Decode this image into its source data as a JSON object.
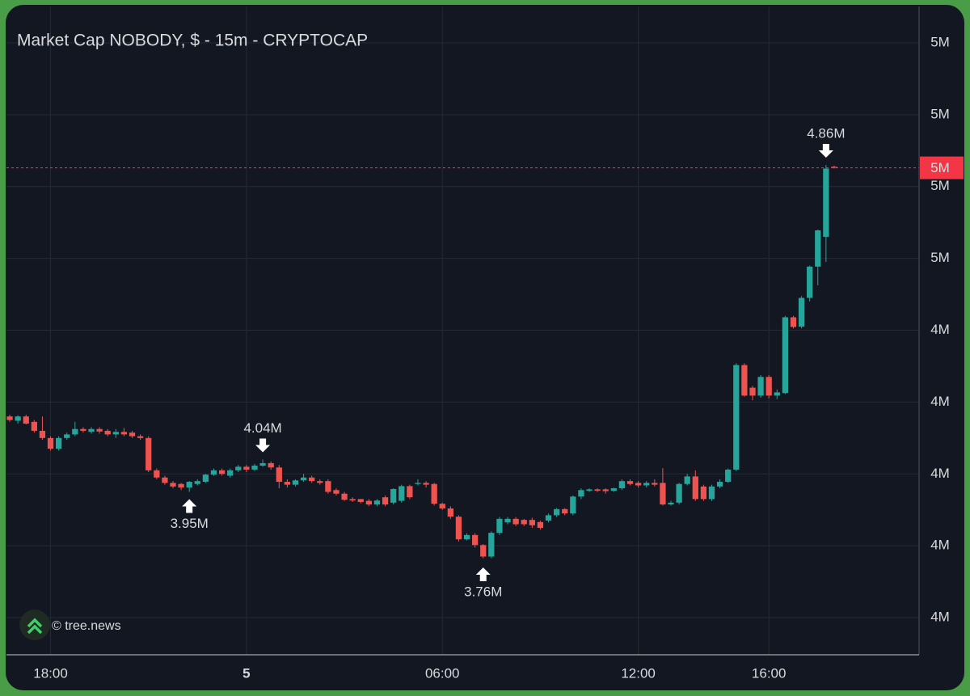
{
  "chart_data": {
    "type": "candlestick",
    "title": "Market Cap NOBODY, $ - 15m - CRYPTOCAP",
    "watermark": "© tree.news",
    "up_color": "#26a69a",
    "down_color": "#ef5350",
    "grid": true,
    "open": [
      4.16,
      4.148,
      4.16,
      4.145,
      4.12,
      4.1,
      4.07,
      4.1,
      4.11,
      4.125,
      4.117,
      4.125,
      4.12,
      4.11,
      4.117,
      4.115,
      4.105,
      4.1,
      4.01,
      3.99,
      3.975,
      3.972,
      3.962,
      3.972,
      3.978,
      3.998,
      4.01,
      3.995,
      4.01,
      4.02,
      4.012,
      4.023,
      4.03,
      4.018,
      3.978,
      3.97,
      3.982,
      3.99,
      3.98,
      3.98,
      3.955,
      3.945,
      3.93,
      3.93,
      3.925,
      3.915,
      3.935,
      3.92,
      3.925,
      3.966,
      3.972,
      3.975,
      3.972,
      3.917,
      3.904,
      3.881,
      3.818,
      3.83,
      3.802,
      3.77,
      3.836,
      3.865,
      3.875,
      3.872,
      3.872,
      3.866,
      3.87,
      3.885,
      3.902,
      3.89,
      3.937,
      3.953,
      3.957,
      3.957,
      3.953,
      3.96,
      3.98,
      3.975,
      3.968,
      3.975,
      3.975,
      3.915,
      3.92,
      3.972,
      3.993,
      3.965,
      3.93,
      3.965,
      3.978,
      4.012,
      4.303,
      4.24,
      4.218,
      4.27,
      4.218,
      4.225,
      4.436,
      4.41,
      4.49,
      4.577,
      4.66,
      4.855
    ],
    "high": [
      4.165,
      4.163,
      4.165,
      4.15,
      4.16,
      4.105,
      4.105,
      4.115,
      4.145,
      4.13,
      4.13,
      4.13,
      4.125,
      4.125,
      4.128,
      4.12,
      4.11,
      4.105,
      4.015,
      3.995,
      3.98,
      3.975,
      3.98,
      3.985,
      4.0,
      4.015,
      4.015,
      4.015,
      4.025,
      4.025,
      4.028,
      4.04,
      4.035,
      4.025,
      3.985,
      3.985,
      4.0,
      3.995,
      3.985,
      3.985,
      3.96,
      3.95,
      3.935,
      3.93,
      3.93,
      3.93,
      3.94,
      3.96,
      3.97,
      3.97,
      3.985,
      3.98,
      3.975,
      3.92,
      3.91,
      3.885,
      3.835,
      3.835,
      3.805,
      3.84,
      3.88,
      3.88,
      3.88,
      3.875,
      3.878,
      3.87,
      3.89,
      3.905,
      3.905,
      3.94,
      3.96,
      3.96,
      3.96,
      3.96,
      3.962,
      3.985,
      3.985,
      3.98,
      3.98,
      3.985,
      4.016,
      3.925,
      3.975,
      4.0,
      4.01,
      3.97,
      3.97,
      3.985,
      4.015,
      4.308,
      4.308,
      4.245,
      4.275,
      4.275,
      4.235,
      4.44,
      4.44,
      4.495,
      4.58,
      4.68,
      4.86,
      4.858
    ],
    "low": [
      4.145,
      4.14,
      4.138,
      4.115,
      4.095,
      4.065,
      4.065,
      4.095,
      4.105,
      4.115,
      4.112,
      4.112,
      4.105,
      4.1,
      4.105,
      4.1,
      4.095,
      4.005,
      3.985,
      3.97,
      3.96,
      3.955,
      3.95,
      3.968,
      3.975,
      3.995,
      3.995,
      3.99,
      4.005,
      4.005,
      4.008,
      4.02,
      4.012,
      3.96,
      3.962,
      3.965,
      3.978,
      3.975,
      3.97,
      3.945,
      3.94,
      3.925,
      3.922,
      3.918,
      3.91,
      3.91,
      3.91,
      3.915,
      3.92,
      3.93,
      3.968,
      3.962,
      3.912,
      3.9,
      3.875,
      3.812,
      3.815,
      3.795,
      3.765,
      3.765,
      3.83,
      3.86,
      3.855,
      3.855,
      3.85,
      3.845,
      3.865,
      3.88,
      3.885,
      3.885,
      3.93,
      3.95,
      3.95,
      3.945,
      3.95,
      3.955,
      3.968,
      3.962,
      3.962,
      3.965,
      3.912,
      3.912,
      3.915,
      3.968,
      3.925,
      3.925,
      3.925,
      3.96,
      3.975,
      4.008,
      4.215,
      4.205,
      4.212,
      4.21,
      4.208,
      4.222,
      4.405,
      4.405,
      4.48,
      4.525,
      4.59,
      4.85
    ],
    "close": [
      4.15,
      4.16,
      4.14,
      4.12,
      4.1,
      4.07,
      4.1,
      4.11,
      4.125,
      4.12,
      4.125,
      4.118,
      4.11,
      4.117,
      4.11,
      4.105,
      4.1,
      4.01,
      3.99,
      3.975,
      3.965,
      3.962,
      3.978,
      3.98,
      3.998,
      4.01,
      4.0,
      4.01,
      4.02,
      4.012,
      4.023,
      4.03,
      4.018,
      3.978,
      3.97,
      3.982,
      3.99,
      3.98,
      3.975,
      3.95,
      3.945,
      3.928,
      3.926,
      3.922,
      3.915,
      3.926,
      3.915,
      3.958,
      3.966,
      3.935,
      3.975,
      3.97,
      3.917,
      3.904,
      3.881,
      3.818,
      3.83,
      3.802,
      3.77,
      3.836,
      3.875,
      3.875,
      3.86,
      3.86,
      3.857,
      3.85,
      3.885,
      3.902,
      3.89,
      3.937,
      3.955,
      3.957,
      3.953,
      3.952,
      3.96,
      3.98,
      3.972,
      3.968,
      3.975,
      3.97,
      3.915,
      3.92,
      3.972,
      3.993,
      3.93,
      3.93,
      3.965,
      3.978,
      4.012,
      4.303,
      4.218,
      4.218,
      4.27,
      4.218,
      4.227,
      4.436,
      4.409,
      4.49,
      4.577,
      4.678,
      4.85,
      4.852
    ],
    "xlim": [
      -0.4,
      111.4
    ],
    "xticks": [
      {
        "value": 5,
        "label": "18:00"
      },
      {
        "value": 29,
        "label": "5"
      },
      {
        "value": 53,
        "label": "06:00"
      },
      {
        "value": 77,
        "label": "12:00"
      },
      {
        "value": 93,
        "label": "16:00"
      }
    ],
    "ylim": [
      3.5,
      5.3
    ],
    "yticks": [
      {
        "value": 3.6,
        "label": "4M"
      },
      {
        "value": 3.8,
        "label": "4M"
      },
      {
        "value": 4.0,
        "label": "4M"
      },
      {
        "value": 4.2,
        "label": "4M"
      },
      {
        "value": 4.4,
        "label": "4M"
      },
      {
        "value": 4.6,
        "label": "5M"
      },
      {
        "value": 4.8,
        "label": "5M"
      },
      {
        "value": 5.0,
        "label": "5M"
      },
      {
        "value": 5.2,
        "label": "5M"
      }
    ],
    "last_price": {
      "value": 4.852,
      "label": "5M",
      "color": "#f23645"
    },
    "annotations": [
      {
        "value": 4.04,
        "label": "4.04M",
        "side": "above"
      },
      {
        "value": 3.95,
        "label": "3.95M",
        "side": "below"
      },
      {
        "value": 3.76,
        "label": "3.76M",
        "side": "below"
      },
      {
        "value": 4.86,
        "label": "4.86M",
        "side": "above"
      }
    ]
  }
}
